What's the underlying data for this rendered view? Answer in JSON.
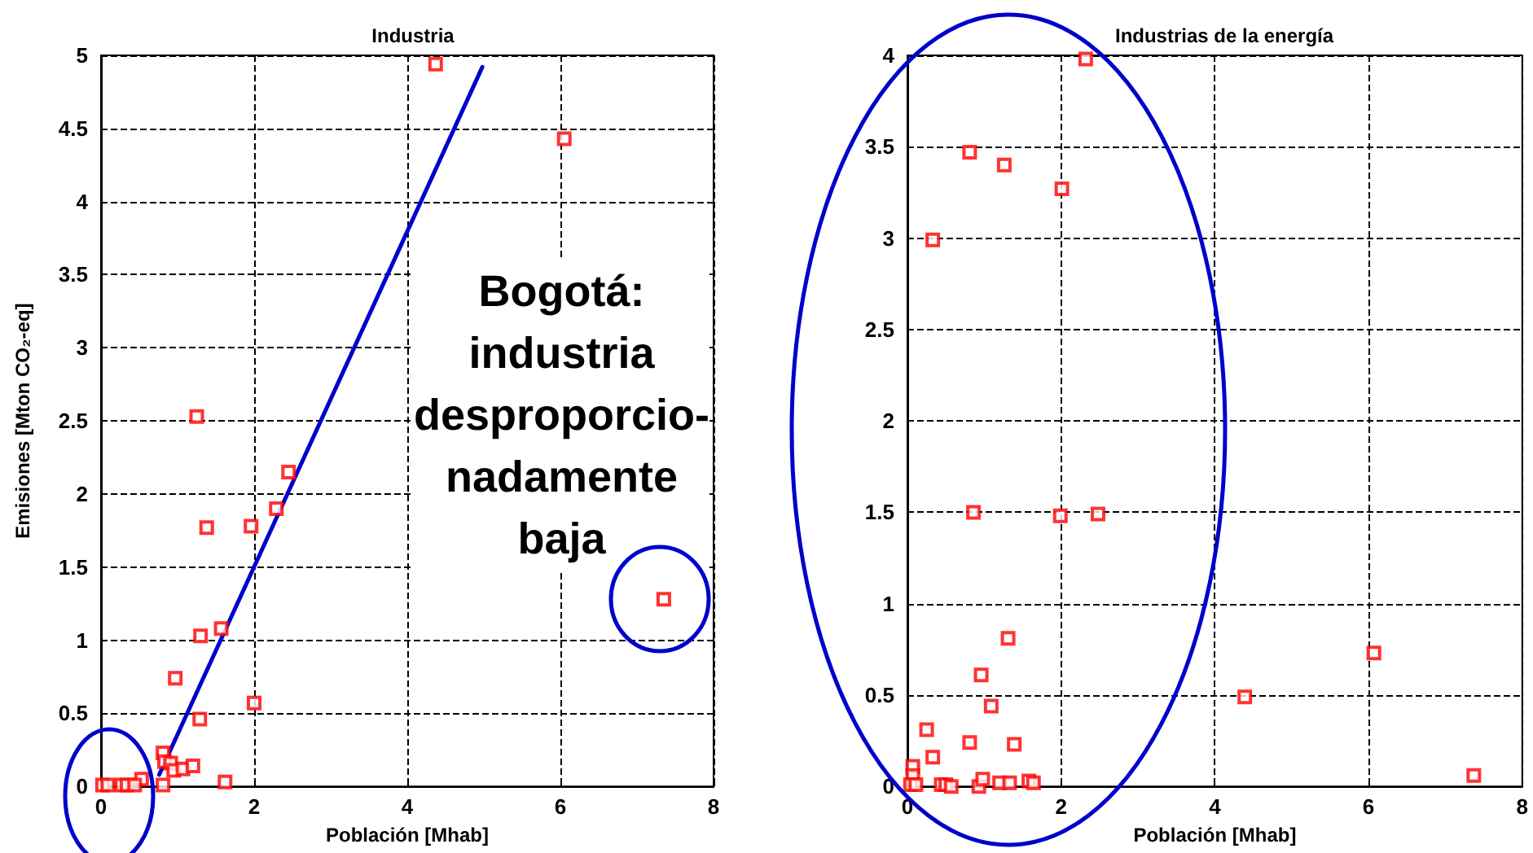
{
  "chart_data": [
    {
      "type": "scatter",
      "title": "Industria",
      "xlabel": "Población [Mhab]",
      "ylabel": "Emisiones [Mton CO₂-eq]",
      "xlim": [
        0,
        8
      ],
      "ylim": [
        0,
        5
      ],
      "xticks": [
        0,
        2,
        4,
        6,
        8
      ],
      "yticks": [
        0,
        0.5,
        1,
        1.5,
        2,
        2.5,
        3,
        3.5,
        4,
        4.5,
        5
      ],
      "grid": true,
      "marker": "square",
      "series": [
        {
          "color": "#ff0000",
          "x": [
            1.25,
            2.45,
            2.29,
            1.38,
            1.96,
            1.57,
            1.3,
            0.97,
            2.0,
            1.29,
            0.81,
            0.83,
            0.91,
            0.95,
            1.07,
            1.2,
            0.81,
            1.62,
            0.53,
            0.02,
            0.09,
            0.27,
            0.34,
            0.44,
            4.37,
            6.05,
            7.35
          ],
          "values": [
            2.53,
            2.15,
            1.9,
            1.77,
            1.78,
            1.08,
            1.03,
            0.74,
            0.57,
            0.46,
            0.23,
            0.17,
            0.16,
            0.11,
            0.12,
            0.14,
            0.01,
            0.03,
            0.05,
            0.01,
            0.01,
            0.01,
            0.01,
            0.01,
            4.94,
            4.43,
            1.28
          ]
        },
        {
          "type": "line",
          "color": "#0000cc",
          "marker": "none",
          "x": [
            0.76,
            4.98
          ],
          "values": [
            0.08,
            4.92
          ]
        }
      ],
      "annotations": [
        "Bogotá:\nindustria\ndesproporcio-\nnadamente\nbaja"
      ]
    },
    {
      "type": "scatter",
      "title": "Industrias de la energía",
      "xlabel": "Población [Mhab]",
      "xlim": [
        0,
        8
      ],
      "ylim": [
        0,
        4
      ],
      "xticks": [
        0,
        2,
        4,
        6,
        8
      ],
      "yticks": [
        0,
        0.5,
        1,
        1.5,
        2,
        2.5,
        3,
        3.5,
        4
      ],
      "grid": true,
      "marker": "square",
      "series": [
        {
          "color": "#ff0000",
          "x": [
            0.86,
            1.99,
            2.48,
            1.31,
            0.96,
            1.09,
            6.07,
            4.39,
            7.37,
            0.25,
            0.33,
            0.81,
            1.39,
            0.07,
            0.07,
            0.04,
            0.11,
            0.44,
            0.5,
            0.57,
            0.93,
            0.98,
            1.2,
            1.33,
            1.58,
            1.64,
            0.33,
            0.81,
            1.26,
            2.01,
            2.32
          ],
          "values": [
            1.5,
            1.48,
            1.49,
            0.81,
            0.61,
            0.44,
            0.73,
            0.49,
            0.06,
            0.31,
            0.16,
            0.24,
            0.23,
            0.11,
            0.06,
            0.01,
            0.01,
            0.01,
            0.01,
            0.0,
            0.0,
            0.04,
            0.02,
            0.02,
            0.03,
            0.02,
            2.99,
            3.47,
            3.4,
            3.27,
            3.98
          ]
        }
      ]
    }
  ]
}
